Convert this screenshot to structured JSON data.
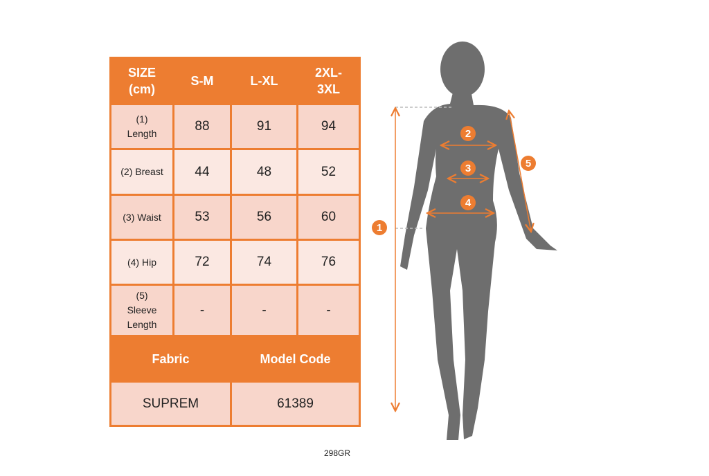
{
  "table": {
    "header": [
      "SIZE (cm)",
      "S-M",
      "L-XL",
      "2XL-3XL"
    ],
    "rows": [
      {
        "label": "(1) Length",
        "values": [
          "88",
          "91",
          "94"
        ]
      },
      {
        "label": "(2) Breast",
        "values": [
          "44",
          "48",
          "52"
        ]
      },
      {
        "label": "(3) Waist",
        "values": [
          "53",
          "56",
          "60"
        ]
      },
      {
        "label": "(4) Hip",
        "values": [
          "72",
          "74",
          "76"
        ]
      },
      {
        "label": "(5) Sleeve Length",
        "values": [
          "-",
          "-",
          "-"
        ]
      }
    ],
    "fabric_label": "Fabric",
    "model_code_label": "Model Code",
    "fabric": "SUPREM",
    "model_code": "61389"
  },
  "figure": {
    "markers": [
      "1",
      "2",
      "3",
      "4",
      "5"
    ]
  },
  "product_code": "298GR",
  "colors": {
    "accent": "#ED7D31",
    "row_dark": "#F8D6CB",
    "row_light": "#FBE8E2",
    "silhouette": "#6E6E6E"
  }
}
